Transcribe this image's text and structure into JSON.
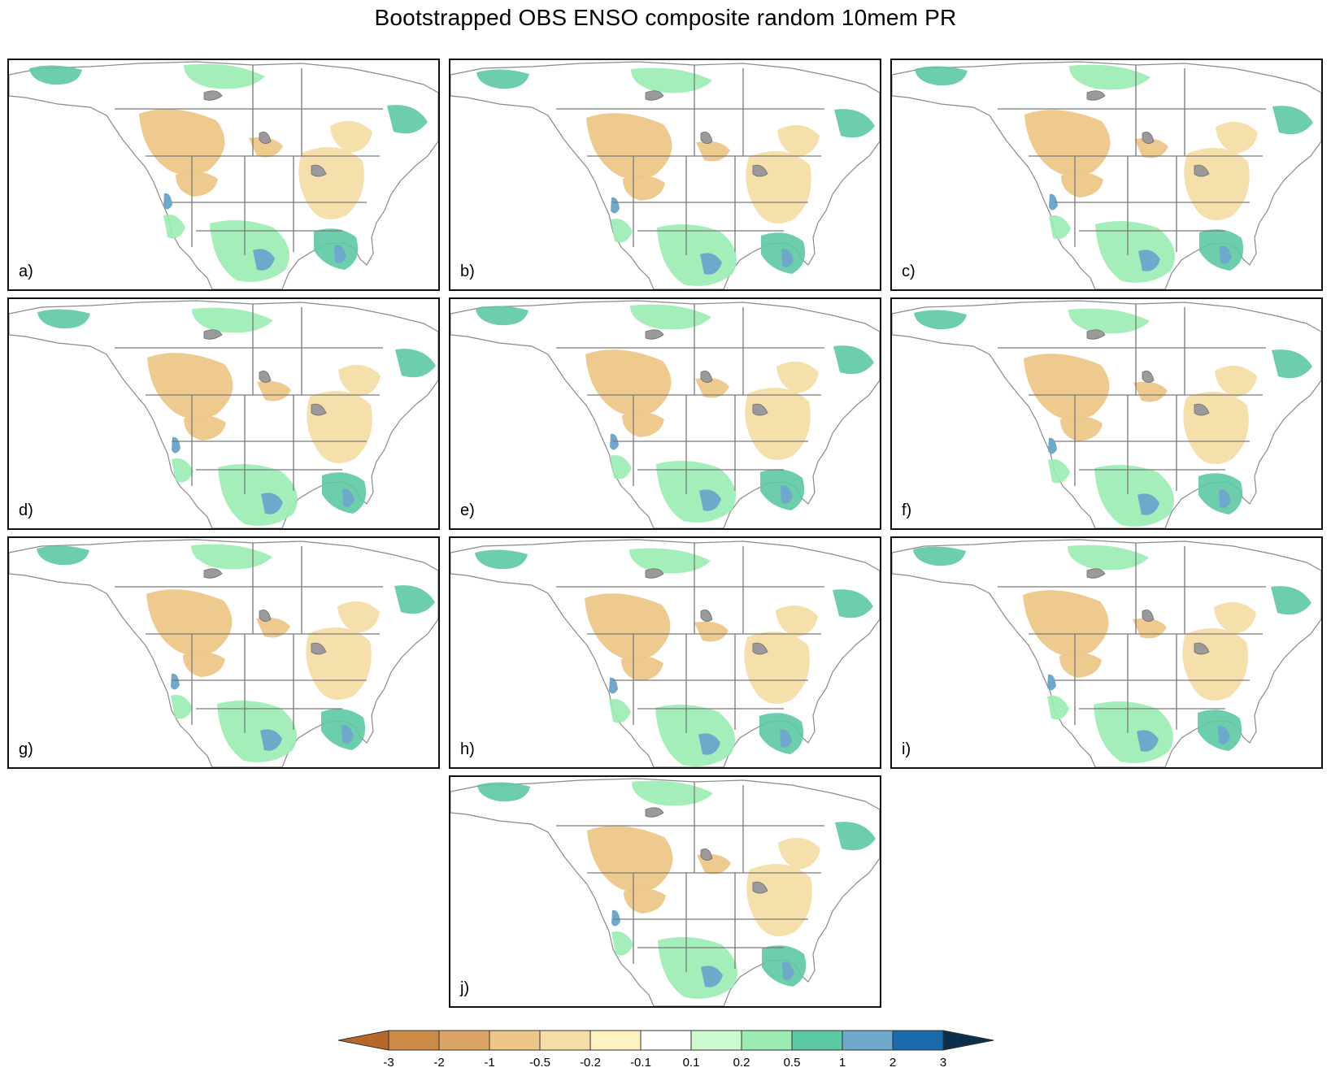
{
  "title": "Bootstrapped OBS ENSO composite random 10mem PR",
  "colorbar": {
    "tick_labels": [
      "-3",
      "-2",
      "-1",
      "-0.5",
      "-0.2",
      "-0.1",
      "0.1",
      "0.2",
      "0.5",
      "1",
      "2",
      "3"
    ],
    "colors": [
      "#b6672a",
      "#cb8a46",
      "#dda565",
      "#edc789",
      "#f4dda6",
      "#fff2c2",
      "#ffffff",
      "#ccfbcf",
      "#9aecb1",
      "#5dc9a2",
      "#6ea8cb",
      "#1a6aac",
      "#0b2e4d"
    ],
    "extend": "both"
  },
  "panels": [
    {
      "label": "a)"
    },
    {
      "label": "b)"
    },
    {
      "label": "c)"
    },
    {
      "label": "d)"
    },
    {
      "label": "e)"
    },
    {
      "label": "f)"
    },
    {
      "label": "g)"
    },
    {
      "label": "h)"
    },
    {
      "label": "i)"
    },
    {
      "label": "j)"
    }
  ]
}
